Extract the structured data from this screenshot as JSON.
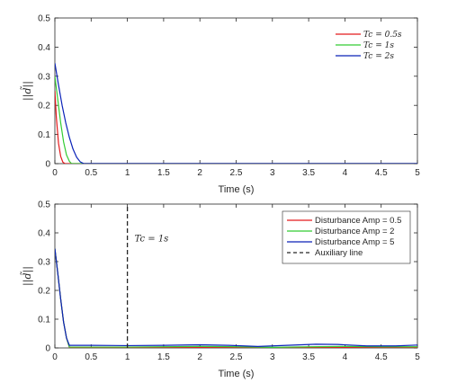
{
  "chart_data": [
    {
      "type": "line",
      "xlabel": "Time (s)",
      "ylabel": "||d̃||",
      "xlim": [
        0,
        5
      ],
      "ylim": [
        0,
        0.5
      ],
      "xticks": [
        "0",
        "0.5",
        "1",
        "1.5",
        "2",
        "2.5",
        "3",
        "3.5",
        "4",
        "4.5",
        "5"
      ],
      "yticks": [
        "0",
        "0.1",
        "0.2",
        "0.3",
        "0.4",
        "0.5"
      ],
      "grid": false,
      "legend_position": "top-right",
      "series": [
        {
          "name": "Tc = 0.5s",
          "color": "#e41a1c",
          "x": [
            0,
            0.02,
            0.05,
            0.08,
            0.11,
            0.14,
            5
          ],
          "y": [
            0.25,
            0.16,
            0.07,
            0.025,
            0.005,
            0,
            0
          ]
        },
        {
          "name": "Tc = 1s",
          "color": "#33cc33",
          "x": [
            0,
            0.04,
            0.08,
            0.12,
            0.16,
            0.2,
            0.23,
            5
          ],
          "y": [
            0.3,
            0.22,
            0.14,
            0.075,
            0.03,
            0.008,
            0,
            0
          ]
        },
        {
          "name": "Tc = 2s",
          "color": "#0a22b8",
          "x": [
            0,
            0.05,
            0.1,
            0.15,
            0.2,
            0.25,
            0.3,
            0.35,
            0.4,
            5
          ],
          "y": [
            0.345,
            0.27,
            0.2,
            0.14,
            0.09,
            0.05,
            0.022,
            0.006,
            0,
            0
          ]
        }
      ]
    },
    {
      "type": "line",
      "xlabel": "Time (s)",
      "ylabel": "||d̃||",
      "xlim": [
        0,
        5
      ],
      "ylim": [
        0,
        0.5
      ],
      "xticks": [
        "0",
        "0.5",
        "1",
        "1.5",
        "2",
        "2.5",
        "3",
        "3.5",
        "4",
        "4.5",
        "5"
      ],
      "yticks": [
        "0",
        "0.1",
        "0.2",
        "0.3",
        "0.4",
        "0.5"
      ],
      "grid": false,
      "legend_position": "top-right",
      "annotation": "Tc = 1s",
      "auxiliary_x": 1,
      "series": [
        {
          "name": "Disturbance Amp = 0.5",
          "color": "#e41a1c",
          "x": [
            0,
            0.04,
            0.08,
            0.12,
            0.16,
            0.2,
            0.5,
            1,
            2,
            3,
            4,
            5
          ],
          "y": [
            0.345,
            0.26,
            0.17,
            0.09,
            0.035,
            0.002,
            0.001,
            0.001,
            0.002,
            0.001,
            0.002,
            0.001
          ]
        },
        {
          "name": "Disturbance Amp = 2",
          "color": "#33cc33",
          "x": [
            0,
            0.04,
            0.08,
            0.12,
            0.16,
            0.2,
            0.5,
            1,
            1.5,
            2,
            2.5,
            3,
            3.5,
            4,
            4.5,
            5
          ],
          "y": [
            0.345,
            0.26,
            0.17,
            0.09,
            0.035,
            0.003,
            0.003,
            0.003,
            0.004,
            0.005,
            0.004,
            0.002,
            0.004,
            0.005,
            0.004,
            0.004
          ]
        },
        {
          "name": "Disturbance Amp = 5",
          "color": "#0a22b8",
          "x": [
            0,
            0.04,
            0.08,
            0.12,
            0.16,
            0.2,
            0.5,
            1,
            1.5,
            2,
            2.4,
            2.8,
            3.2,
            3.6,
            3.9,
            4.3,
            4.7,
            5
          ],
          "y": [
            0.345,
            0.26,
            0.17,
            0.09,
            0.035,
            0.009,
            0.009,
            0.008,
            0.009,
            0.011,
            0.009,
            0.005,
            0.009,
            0.013,
            0.012,
            0.007,
            0.007,
            0.01
          ]
        },
        {
          "name": "Auxiliary line",
          "color": "#262626",
          "dashed": true,
          "x": [
            1,
            1
          ],
          "y": [
            0,
            0.5
          ]
        }
      ]
    }
  ]
}
